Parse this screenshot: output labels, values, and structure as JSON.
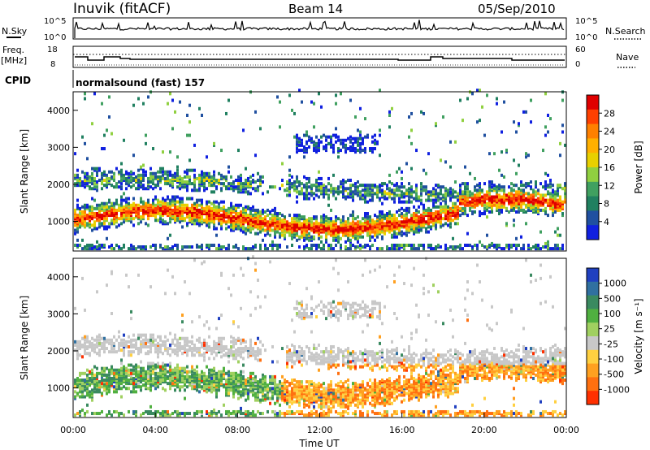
{
  "header": {
    "station": "Inuvik (fitACF)",
    "beam": "Beam 14",
    "date": "05/Sep/2010"
  },
  "top_panels": {
    "nsky_label": "N.Sky",
    "nsky_ticks": [
      "10^5",
      "10^0"
    ],
    "nsearch_label": "N.Search",
    "nsearch_ticks": [
      "10^5",
      "10^0"
    ],
    "freq_label": "Freq.",
    "freq_unit": "[MHz]",
    "freq_ticks": [
      "18",
      "8"
    ],
    "nave_label": "Nave",
    "nave_ticks": [
      "60",
      "0"
    ],
    "cpid_label": "CPID",
    "cpid_value": "normalsound (fast) 157"
  },
  "chart_data": [
    {
      "type": "heatmap",
      "panel": "power",
      "ylabel": "Slant Range [km]",
      "yticks": [
        "1000",
        "2000",
        "3000",
        "4000"
      ],
      "ylim": [
        200,
        4500
      ],
      "xlim": [
        0,
        24
      ],
      "colorbar_label": "Power [dB]",
      "colorbar_ticks": [
        "28",
        "24",
        "20",
        "16",
        "12",
        "8",
        "4"
      ],
      "colorbar_colors": [
        "#e00000",
        "#ff4000",
        "#ff8000",
        "#ffb000",
        "#e8d000",
        "#90d040",
        "#40a060",
        "#208060",
        "#2050a0",
        "#1020e0"
      ],
      "bands": [
        {
          "range_km": [
            700,
            1300
          ],
          "level": "high"
        },
        {
          "range_km": [
            1500,
            2200
          ],
          "level": "mid"
        },
        {
          "range_km": [
            2800,
            3300
          ],
          "level": "low"
        }
      ]
    },
    {
      "type": "heatmap",
      "panel": "velocity",
      "ylabel": "Slant Range [km]",
      "yticks": [
        "1000",
        "2000",
        "3000",
        "4000"
      ],
      "ylim": [
        200,
        4500
      ],
      "xlim": [
        0,
        24
      ],
      "xticks": [
        "00:00",
        "04:00",
        "08:00",
        "12:00",
        "16:00",
        "20:00",
        "00:00"
      ],
      "xlabel": "Time UT",
      "colorbar_label": "Velocity [m s⁻¹]",
      "colorbar_ticks": [
        "1000",
        "500",
        "100",
        "25",
        "-25",
        "-100",
        "-500",
        "-1000"
      ],
      "colorbar_colors": [
        "#2040c0",
        "#3070a0",
        "#3a8a60",
        "#50b040",
        "#a0d060",
        "#c8c8c8",
        "#ffd040",
        "#ffa020",
        "#ff7010",
        "#ff3000"
      ]
    }
  ]
}
